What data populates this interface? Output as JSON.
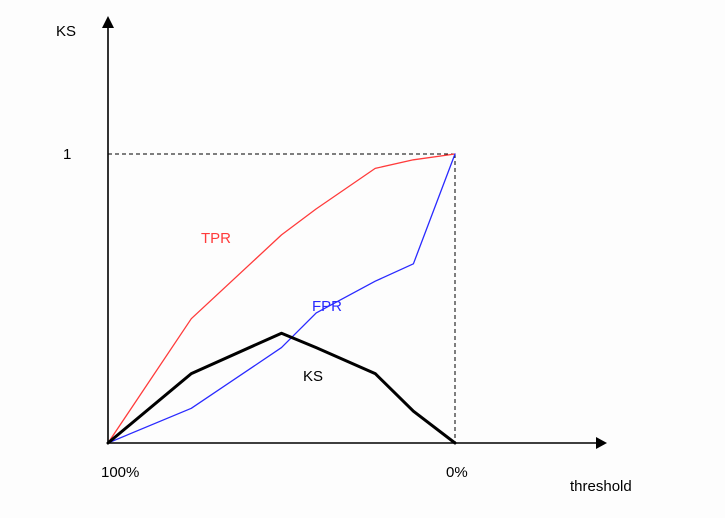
{
  "chart_data": {
    "type": "line",
    "ylabel": "KS",
    "xlabel": "threshold",
    "x_ticks": [
      "100%",
      "0%"
    ],
    "y_ticks": [
      "1"
    ],
    "xlim": [
      0,
      1
    ],
    "ylim": [
      0,
      1
    ],
    "reference_lines": "dashed lines at y = 1 and x = 1",
    "x": [
      0,
      0.24,
      0.5,
      0.6,
      0.77,
      0.88,
      1
    ],
    "series": [
      {
        "name": "TPR",
        "color": "#ff3b3b",
        "values": [
          0,
          0.43,
          0.72,
          0.81,
          0.95,
          0.98,
          1
        ]
      },
      {
        "name": "FPR",
        "color": "#2a2aff",
        "values": [
          0,
          0.12,
          0.33,
          0.45,
          0.56,
          0.62,
          1
        ]
      },
      {
        "name": "KS",
        "color": "#000000",
        "values": [
          0,
          0.24,
          0.38,
          0.33,
          0.24,
          0.11,
          0
        ]
      }
    ],
    "annotations": [
      {
        "text": "TPR",
        "color": "#ff3b3b"
      },
      {
        "text": "FPR",
        "color": "#2a2aff"
      },
      {
        "text": "KS",
        "color": "#000000"
      }
    ]
  }
}
